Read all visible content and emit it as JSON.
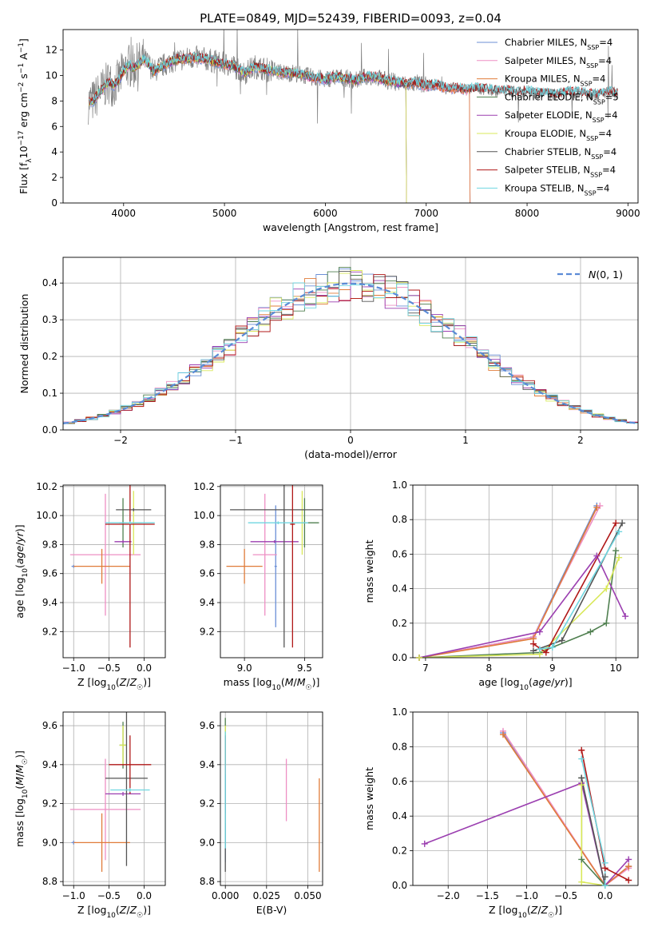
{
  "figure": {
    "title": "PLATE=0849, MJD=52439, FIBERID=0093, z=0.04"
  },
  "colors": {
    "Chabrier MILES": "#6b8fd6",
    "Salpeter MILES": "#ee8fc4",
    "Kroupa MILES": "#e07b39",
    "Chabrier ELODIE": "#4f7f4f",
    "Salpeter ELODIE": "#9b3fb0",
    "Kroupa ELODIE": "#d9e85a",
    "Chabrier STELIB": "#555555",
    "Salpeter STELIB": "#b01818",
    "Kroupa STELIB": "#6fd6e0",
    "data": "#808080",
    "normal_fit": "#5b8bd6"
  },
  "chart_data": [
    {
      "id": "spectrum",
      "type": "line",
      "xlabel": "wavelength [Angstrom, rest frame]",
      "ylabel": "Flux [f_λ10^-17 erg cm^-2 s^-1 A^-1]",
      "xlim": [
        3400,
        9100
      ],
      "ylim": [
        0,
        13.6
      ],
      "xticks": [
        4000,
        5000,
        6000,
        7000,
        8000,
        9000
      ],
      "yticks": [
        0,
        2,
        4,
        6,
        8,
        10,
        12
      ],
      "legend_position": "top-right",
      "legend": [
        {
          "label": "Chabrier MILES, N",
          "sub": "SSP",
          "suffix": "=4"
        },
        {
          "label": "Salpeter MILES, N",
          "sub": "SSP",
          "suffix": "=4"
        },
        {
          "label": "Kroupa MILES, N",
          "sub": "SSP",
          "suffix": "=4"
        },
        {
          "label": "Chabrier ELODIE, N",
          "sub": "SSP",
          "suffix": "=5"
        },
        {
          "label": "Salpeter ELODIE, N",
          "sub": "SSP",
          "suffix": "=4"
        },
        {
          "label": "Kroupa ELODIE, N",
          "sub": "SSP",
          "suffix": "=4"
        },
        {
          "label": "Chabrier STELIB, N",
          "sub": "SSP",
          "suffix": "=4"
        },
        {
          "label": "Salpeter STELIB, N",
          "sub": "SSP",
          "suffix": "=4"
        },
        {
          "label": "Kroupa STELIB, N",
          "sub": "SSP",
          "suffix": "=4"
        }
      ],
      "data_spectrum": {
        "x": [
          3650,
          3700,
          3750,
          3800,
          3850,
          3900,
          3950,
          4000,
          4050,
          4100,
          4150,
          4200,
          4250,
          4300,
          4350,
          4400,
          4500,
          4600,
          4700,
          4800,
          4900,
          5000,
          5100,
          5200,
          5300,
          5400,
          5500,
          5600,
          5700,
          5800,
          5900,
          6000,
          6100,
          6200,
          6300,
          6400,
          6500,
          6600,
          6700,
          6800,
          6900,
          7000,
          7100,
          7200,
          7300,
          7400,
          7500,
          7600,
          7700,
          7800,
          7900,
          8000,
          8100,
          8200,
          8300,
          8400,
          8500,
          8600,
          8700,
          8800,
          8900
        ],
        "y": [
          7.9,
          8.0,
          8.6,
          9.0,
          9.5,
          9.2,
          9.6,
          10.4,
          10.8,
          10.6,
          10.9,
          11.3,
          10.9,
          10.3,
          10.6,
          10.8,
          11.2,
          11.3,
          11.4,
          11.3,
          11.1,
          10.9,
          10.7,
          10.2,
          10.7,
          10.5,
          10.3,
          10.2,
          10.2,
          10.0,
          9.8,
          9.7,
          9.9,
          9.8,
          9.6,
          9.9,
          9.9,
          9.6,
          9.5,
          9.3,
          9.4,
          9.2,
          9.3,
          9.0,
          9.0,
          8.9,
          9.0,
          8.9,
          8.8,
          8.8,
          8.7,
          8.8,
          8.6,
          8.6,
          8.5,
          8.7,
          8.7,
          8.6,
          8.5,
          8.7,
          8.6
        ]
      },
      "model_end": {
        "Chabrier MILES": 7430,
        "Salpeter MILES": 7430,
        "Kroupa MILES": 7430,
        "Chabrier ELODIE": 6800,
        "Salpeter ELODIE": 6800,
        "Kroupa ELODIE": 6800,
        "Chabrier STELIB": 8900,
        "Salpeter STELIB": 8900,
        "Kroupa STELIB": 8900
      }
    },
    {
      "id": "residuals",
      "type": "line",
      "xlabel": "(data-model)/error",
      "ylabel": "Normed distribution",
      "xlim": [
        -2.5,
        2.5
      ],
      "ylim": [
        0,
        0.47
      ],
      "xticks": [
        -2,
        -1,
        0,
        1,
        2
      ],
      "yticks": [
        0.0,
        0.1,
        0.2,
        0.3,
        0.4
      ],
      "grid": true,
      "legend_position": "top-right",
      "legend": "N(0,1)"
    },
    {
      "id": "age-vs-Z",
      "type": "scatter",
      "xlabel": "Z [log10(Z/Z☉)]",
      "ylabel": "age  [log10(age/yr)]",
      "xlim": [
        -1.15,
        0.3
      ],
      "ylim": [
        9.02,
        10.21
      ],
      "xticks": [
        -1.0,
        -0.5,
        0.0
      ],
      "yticks": [
        9.2,
        9.4,
        9.6,
        9.8,
        10.0,
        10.2
      ],
      "grid": true,
      "points": [
        {
          "model": "Chabrier MILES",
          "x": -1.0,
          "xerr": 0.03,
          "y": 9.65,
          "yerr": 0.01
        },
        {
          "model": "Salpeter MILES",
          "x": -0.55,
          "xerr": 0.5,
          "y": 9.73,
          "yerr": 0.42
        },
        {
          "model": "Kroupa MILES",
          "x": -0.6,
          "xerr": 0.4,
          "y": 9.65,
          "yerr": 0.12
        },
        {
          "model": "Chabrier ELODIE",
          "x": -0.3,
          "xerr": 0.05,
          "y": 9.95,
          "yerr": 0.17
        },
        {
          "model": "Salpeter ELODIE",
          "x": -0.3,
          "xerr": 0.12,
          "y": 9.82,
          "yerr": 0.01
        },
        {
          "model": "Kroupa ELODIE",
          "x": -0.15,
          "xerr": 0.12,
          "y": 9.95,
          "yerr": 0.22
        },
        {
          "model": "Chabrier STELIB",
          "x": -0.15,
          "xerr": 0.25,
          "y": 10.04,
          "yerr": 0.01
        },
        {
          "model": "Salpeter STELIB",
          "x": -0.2,
          "xerr": 0.35,
          "y": 9.94,
          "yerr": 0.85
        },
        {
          "model": "Kroupa STELIB",
          "x": -0.2,
          "xerr": 0.35,
          "y": 9.95,
          "yerr": 0.01
        }
      ]
    },
    {
      "id": "age-vs-mass",
      "type": "scatter",
      "xlabel": "mass [log10(M/M☉)]",
      "ylabel": "",
      "xlim": [
        8.8,
        9.65
      ],
      "ylim": [
        9.02,
        10.21
      ],
      "xticks": [
        9.0,
        9.5
      ],
      "yticks": [
        9.2,
        9.4,
        9.6,
        9.8,
        10.0,
        10.2
      ],
      "grid": true,
      "points": [
        {
          "model": "Chabrier MILES",
          "x": 9.26,
          "xerr": 0.01,
          "y": 9.65,
          "yerr": 0.42
        },
        {
          "model": "Salpeter MILES",
          "x": 9.17,
          "xerr": 0.1,
          "y": 9.73,
          "yerr": 0.42
        },
        {
          "model": "Kroupa MILES",
          "x": 9.0,
          "xerr": 0.15,
          "y": 9.65,
          "yerr": 0.12
        },
        {
          "model": "Chabrier ELODIE",
          "x": 9.5,
          "xerr": 0.12,
          "y": 9.95,
          "yerr": 0.17
        },
        {
          "model": "Salpeter ELODIE",
          "x": 9.25,
          "xerr": 0.2,
          "y": 9.82,
          "yerr": 0.01
        },
        {
          "model": "Kroupa ELODIE",
          "x": 9.48,
          "xerr": 0.02,
          "y": 9.95,
          "yerr": 0.22
        },
        {
          "model": "Chabrier STELIB",
          "x": 9.33,
          "xerr": 0.45,
          "y": 10.04,
          "yerr": 0.95
        },
        {
          "model": "Salpeter STELIB",
          "x": 9.4,
          "xerr": 0.02,
          "y": 9.94,
          "yerr": 0.85
        },
        {
          "model": "Kroupa STELIB",
          "x": 9.28,
          "xerr": 0.25,
          "y": 9.95,
          "yerr": 0.01
        }
      ]
    },
    {
      "id": "weight-vs-age",
      "type": "line",
      "xlabel": "age  [log10(age/yr)]",
      "ylabel": "mass weight",
      "xlim": [
        6.8,
        10.35
      ],
      "ylim": [
        0,
        1.0
      ],
      "xticks": [
        7,
        8,
        9,
        10
      ],
      "yticks": [
        0.0,
        0.2,
        0.4,
        0.6,
        0.8,
        1.0
      ],
      "grid": true,
      "series": [
        {
          "model": "Chabrier MILES",
          "x": [
            6.9,
            8.7,
            9.7
          ],
          "y": [
            0.0,
            0.12,
            0.88
          ]
        },
        {
          "model": "Salpeter MILES",
          "x": [
            6.9,
            8.7,
            9.75
          ],
          "y": [
            0.0,
            0.12,
            0.88
          ]
        },
        {
          "model": "Kroupa MILES",
          "x": [
            6.9,
            8.7,
            9.7
          ],
          "y": [
            0.0,
            0.11,
            0.87
          ]
        },
        {
          "model": "Chabrier ELODIE",
          "x": [
            6.9,
            8.8,
            9.6,
            9.85,
            10.0
          ],
          "y": [
            0.0,
            0.03,
            0.15,
            0.2,
            0.62
          ]
        },
        {
          "model": "Salpeter ELODIE",
          "x": [
            6.9,
            8.8,
            9.7,
            10.15
          ],
          "y": [
            0.0,
            0.15,
            0.59,
            0.24
          ]
        },
        {
          "model": "Kroupa ELODIE",
          "x": [
            6.9,
            8.8,
            9.85,
            10.05
          ],
          "y": [
            0.0,
            0.02,
            0.4,
            0.58
          ]
        },
        {
          "model": "Chabrier STELIB",
          "x": [
            8.7,
            9.15,
            10.1
          ],
          "y": [
            0.04,
            0.1,
            0.78
          ]
        },
        {
          "model": "Salpeter STELIB",
          "x": [
            8.7,
            8.9,
            10.0
          ],
          "y": [
            0.08,
            0.03,
            0.78
          ]
        },
        {
          "model": "Kroupa STELIB",
          "x": [
            8.8,
            9.0,
            10.05
          ],
          "y": [
            0.05,
            0.06,
            0.73
          ]
        }
      ]
    },
    {
      "id": "mass-vs-Z",
      "type": "scatter",
      "xlabel": "Z [log10(Z/Z☉)]",
      "ylabel": "mass [log10(M/M☉)]",
      "xlim": [
        -1.15,
        0.3
      ],
      "ylim": [
        8.78,
        9.67
      ],
      "xticks": [
        -1.0,
        -0.5,
        0.0
      ],
      "yticks": [
        8.8,
        9.0,
        9.2,
        9.4,
        9.6
      ],
      "grid": true,
      "points": [
        {
          "model": "Chabrier MILES",
          "x": -1.0,
          "xerr": 0.03,
          "y": 9.0,
          "yerr": 0.01
        },
        {
          "model": "Salpeter MILES",
          "x": -0.55,
          "xerr": 0.5,
          "y": 9.17,
          "yerr": 0.26
        },
        {
          "model": "Kroupa MILES",
          "x": -0.6,
          "xerr": 0.4,
          "y": 9.0,
          "yerr": 0.15
        },
        {
          "model": "Chabrier ELODIE",
          "x": -0.3,
          "xerr": 0.05,
          "y": 9.5,
          "yerr": 0.12
        },
        {
          "model": "Salpeter ELODIE",
          "x": -0.3,
          "xerr": 0.25,
          "y": 9.25,
          "yerr": 0.01
        },
        {
          "model": "Kroupa ELODIE",
          "x": -0.3,
          "xerr": 0.05,
          "y": 9.5,
          "yerr": 0.1
        },
        {
          "model": "Chabrier STELIB",
          "x": -0.25,
          "xerr": 0.3,
          "y": 9.33,
          "yerr": 0.45
        },
        {
          "model": "Salpeter STELIB",
          "x": -0.2,
          "xerr": 0.3,
          "y": 9.4,
          "yerr": 0.15
        },
        {
          "model": "Kroupa STELIB",
          "x": -0.2,
          "xerr": 0.28,
          "y": 9.27,
          "yerr": 0.01
        }
      ]
    },
    {
      "id": "mass-vs-ebv",
      "type": "scatter",
      "xlabel": "E(B-V)",
      "ylabel": "",
      "xlim": [
        -0.003,
        0.059
      ],
      "ylim": [
        8.78,
        9.67
      ],
      "xticks": [
        0.0,
        0.025,
        0.05
      ],
      "yticks": [
        8.8,
        9.0,
        9.2,
        9.4,
        9.6
      ],
      "grid": true,
      "points": [
        {
          "model": "Chabrier MILES",
          "x": 0.0,
          "xerr": 0,
          "y": 9.0,
          "yerr": 0.1
        },
        {
          "model": "Salpeter MILES",
          "x": 0.037,
          "xerr": 0,
          "y": 9.27,
          "yerr": 0.16
        },
        {
          "model": "Kroupa MILES",
          "x": 0.057,
          "xerr": 0,
          "y": 9.09,
          "yerr": 0.24
        },
        {
          "model": "Chabrier ELODIE",
          "x": 0.0,
          "xerr": 0,
          "y": 9.52,
          "yerr": 0.12
        },
        {
          "model": "Salpeter ELODIE",
          "x": 0.0,
          "xerr": 0,
          "y": 9.25,
          "yerr": 0.1
        },
        {
          "model": "Kroupa ELODIE",
          "x": 0.0,
          "xerr": 0,
          "y": 9.5,
          "yerr": 0.1
        },
        {
          "model": "Chabrier STELIB",
          "x": 0.0,
          "xerr": 0,
          "y": 9.1,
          "yerr": 0.25
        },
        {
          "model": "Salpeter STELIB",
          "x": 0.0,
          "xerr": 0,
          "y": 9.45,
          "yerr": 0.1
        },
        {
          "model": "Kroupa STELIB",
          "x": 0.0,
          "xerr": 0,
          "y": 9.27,
          "yerr": 0.3
        }
      ]
    },
    {
      "id": "weight-vs-Z",
      "type": "line",
      "xlabel": "Z [log10(Z/Z☉)]",
      "ylabel": "mass weight",
      "xlim": [
        -2.45,
        0.42
      ],
      "ylim": [
        0,
        1.0
      ],
      "xticks": [
        -2.0,
        -1.5,
        -1.0,
        -0.5,
        0.0
      ],
      "yticks": [
        0.0,
        0.2,
        0.4,
        0.6,
        0.8,
        1.0
      ],
      "grid": true,
      "series": [
        {
          "model": "Chabrier MILES",
          "x": [
            -1.3,
            0.0,
            0.3
          ],
          "y": [
            0.88,
            0.0,
            0.11
          ]
        },
        {
          "model": "Salpeter MILES",
          "x": [
            -1.3,
            0.0,
            0.3
          ],
          "y": [
            0.89,
            0.0,
            0.1
          ]
        },
        {
          "model": "Kroupa MILES",
          "x": [
            -1.3,
            0.0,
            0.3
          ],
          "y": [
            0.87,
            0.0,
            0.11
          ]
        },
        {
          "model": "Chabrier ELODIE",
          "x": [
            -0.3,
            -0.3,
            0.0
          ],
          "y": [
            0.62,
            0.15,
            0.0
          ]
        },
        {
          "model": "Salpeter ELODIE",
          "x": [
            -2.3,
            -0.3,
            0.0,
            0.3
          ],
          "y": [
            0.24,
            0.59,
            0.0,
            0.15
          ]
        },
        {
          "model": "Kroupa ELODIE",
          "x": [
            -0.3,
            -0.3,
            0.0
          ],
          "y": [
            0.58,
            0.02,
            0.0
          ]
        },
        {
          "model": "Chabrier STELIB",
          "x": [
            -0.3,
            0.0,
            0.0
          ],
          "y": [
            0.62,
            0.0,
            0.05
          ]
        },
        {
          "model": "Salpeter STELIB",
          "x": [
            -0.3,
            0.0,
            0.3
          ],
          "y": [
            0.78,
            0.1,
            0.03
          ]
        },
        {
          "model": "Kroupa STELIB",
          "x": [
            -0.3,
            0.0,
            0.0
          ],
          "y": [
            0.73,
            0.13,
            0.0
          ]
        }
      ]
    }
  ]
}
